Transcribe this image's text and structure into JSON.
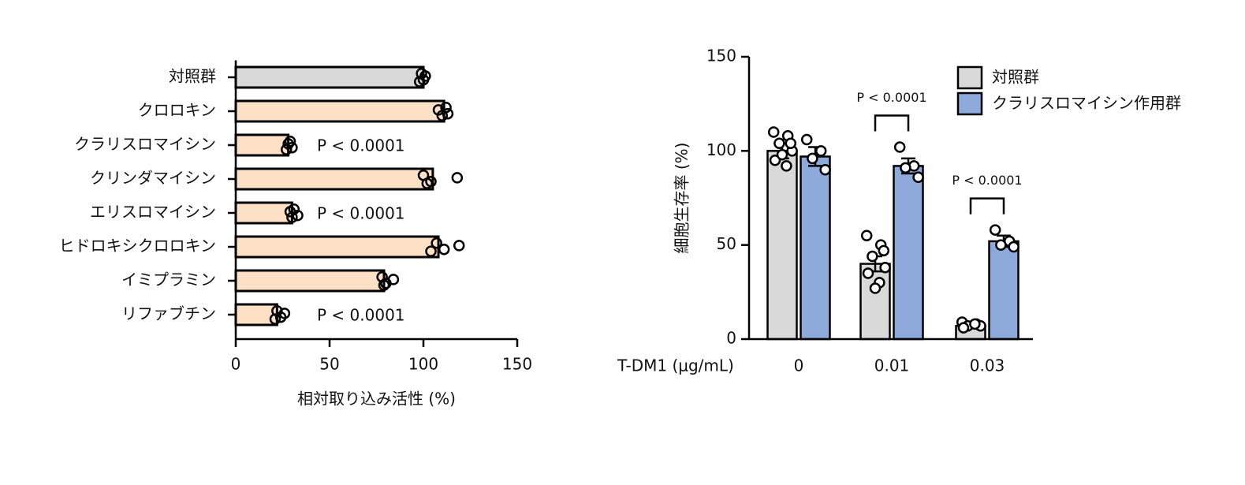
{
  "chart_data": [
    {
      "type": "hbar",
      "categories": [
        "対照群",
        "クロロキン",
        "クラリスロマイシン",
        "クリンダマイシン",
        "エリスロマイシン",
        "ヒドロキシクロロキン",
        "イミプラミン",
        "リファブチン"
      ],
      "values": [
        100,
        111,
        28,
        105,
        30,
        108,
        79,
        22
      ],
      "points": [
        [
          99,
          100,
          101,
          98
        ],
        [
          112,
          113,
          108,
          110
        ],
        [
          29,
          30,
          28,
          27
        ],
        [
          100,
          104,
          118,
          102
        ],
        [
          31,
          33,
          29,
          30
        ],
        [
          107,
          111,
          119,
          104
        ],
        [
          78,
          80,
          84,
          79
        ],
        [
          22,
          24,
          26,
          21
        ]
      ],
      "colors": [
        "#d9d9d9",
        "#fde0c6",
        "#fde0c6",
        "#fde0c6",
        "#fde0c6",
        "#fde0c6",
        "#fde0c6",
        "#fde0c6"
      ],
      "annotations": [
        null,
        null,
        "P < 0.0001",
        null,
        "P < 0.0001",
        null,
        null,
        "P < 0.0001"
      ],
      "xlim": [
        0,
        150
      ],
      "xticks": [
        0,
        50,
        100,
        150
      ],
      "xlabel": "相対取り込み活性 (%)"
    },
    {
      "type": "grouped-bar",
      "xlabel": "T-DM1 (μg/mL)",
      "ylabel": "細胞生存率 (%)",
      "categories": [
        "0",
        "0.01",
        "0.03"
      ],
      "series": [
        {
          "name": "対照群",
          "color": "#d9d9d9",
          "values": [
            100,
            40,
            7
          ],
          "errors": [
            4,
            4,
            1
          ],
          "points": [
            [
              110,
              108,
              104,
              100,
              95,
              92,
              98,
              104
            ],
            [
              55,
              50,
              44,
              38,
              35,
              30,
              27,
              47
            ],
            [
              9,
              8,
              7,
              7,
              6,
              8
            ]
          ]
        },
        {
          "name": "クラリスロマイシン作用群",
          "color": "#8eaadb",
          "values": [
            97,
            92,
            52
          ],
          "errors": [
            5,
            4,
            3
          ],
          "points": [
            [
              106,
              100,
              96,
              90
            ],
            [
              102,
              92,
              91,
              86
            ],
            [
              58,
              52,
              50,
              49
            ]
          ]
        }
      ],
      "annotations": [
        null,
        "P < 0.0001",
        "P < 0.0001"
      ],
      "ylim": [
        0,
        150
      ],
      "yticks": [
        0,
        50,
        100,
        150
      ],
      "legend": "top-right"
    }
  ]
}
